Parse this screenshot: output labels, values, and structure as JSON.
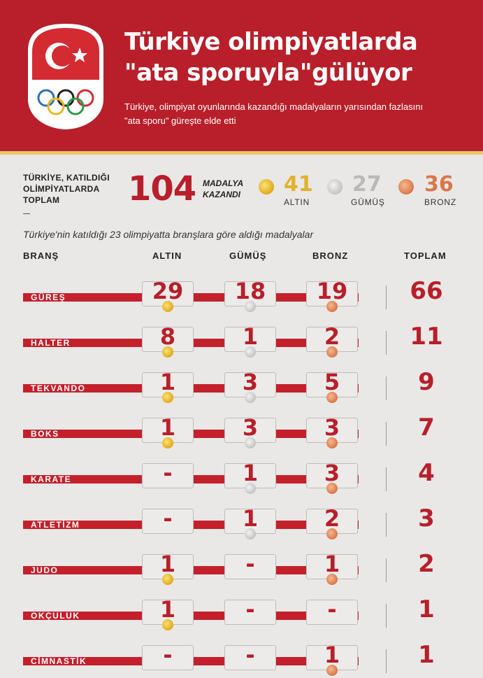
{
  "header": {
    "title_line1": "Türkiye olimpiyatlarda",
    "title_line2": "\"ata sporuyla\"gülüyor",
    "subtitle_line1": "Türkiye, olimpiyat oyunlarında kazandığı madalyaların yarısından fazlasını",
    "subtitle_line2": "\"ata sporu\" güreşte elde etti",
    "colors": {
      "red": "#b81f2a",
      "gold_stripe": "#e8c66a"
    }
  },
  "summary": {
    "label_line1": "TÜRKİYE, KATILDIĞI",
    "label_line2": "OLİMPİYATLARDA",
    "label_line3": "TOPLAM",
    "total": "104",
    "medal_word_line1": "MADALYA",
    "medal_word_line2": "KAZANDI",
    "gold": {
      "count": "41",
      "label": "ALTIN",
      "color": "#e2b22a"
    },
    "silver": {
      "count": "27",
      "label": "GÜMÜŞ",
      "color": "#b9b9b9"
    },
    "bronze": {
      "count": "36",
      "label": "BRONZ",
      "color": "#d9774a"
    }
  },
  "caption": "Türkiye'nin katıldığı 23 olimpiyatta branşlara göre aldığı madalyalar",
  "columns": {
    "branch": "BRANŞ",
    "gold": "ALTIN",
    "silver": "GÜMÜŞ",
    "bronze": "BRONZ",
    "total": "TOPLAM"
  },
  "rows": [
    {
      "branch": "GÜREŞ",
      "gold": "29",
      "silver": "18",
      "bronze": "19",
      "total": "66"
    },
    {
      "branch": "HALTER",
      "gold": "8",
      "silver": "1",
      "bronze": "2",
      "total": "11"
    },
    {
      "branch": "TEKVANDO",
      "gold": "1",
      "silver": "3",
      "bronze": "5",
      "total": "9"
    },
    {
      "branch": "BOKS",
      "gold": "1",
      "silver": "3",
      "bronze": "3",
      "total": "7"
    },
    {
      "branch": "KARATE",
      "gold": "-",
      "silver": "1",
      "bronze": "3",
      "total": "4"
    },
    {
      "branch": "ATLETİZM",
      "gold": "-",
      "silver": "1",
      "bronze": "2",
      "total": "3"
    },
    {
      "branch": "JUDO",
      "gold": "1",
      "silver": "-",
      "bronze": "1",
      "total": "2"
    },
    {
      "branch": "OKÇULUK",
      "gold": "1",
      "silver": "-",
      "bronze": "-",
      "total": "1"
    },
    {
      "branch": "CİMNASTİK",
      "gold": "-",
      "silver": "-",
      "bronze": "1",
      "total": "1"
    }
  ]
}
